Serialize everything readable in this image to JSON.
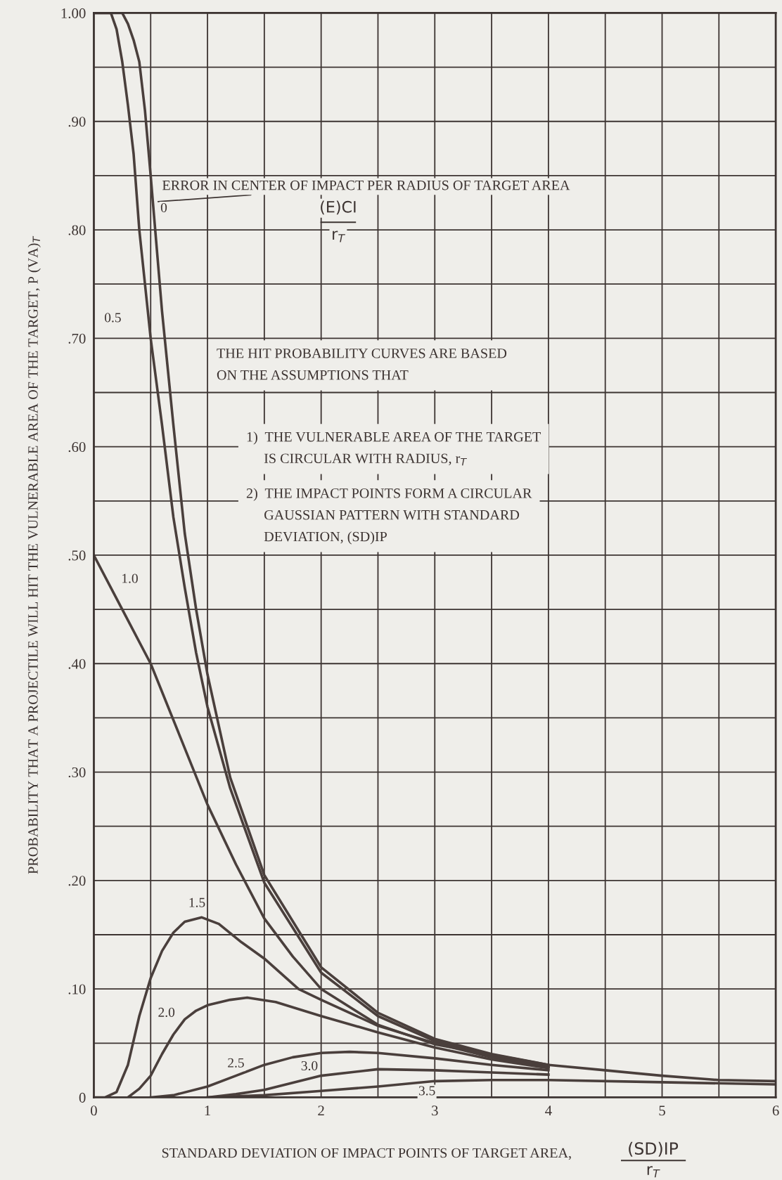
{
  "chart_data": {
    "type": "line",
    "xlabel": "STANDARD DEVIATION OF IMPACT POINTS OF TARGET AREA,",
    "ylabel": "PROBABILITY THAT A PROJECTILE WILL HIT THE VULNERABLE AREA OF THE TARGET, P (VA)$_{T}$",
    "annotations": [
      "ERROR IN CENTER OF IMPACT PER RADIUS OF TARGET AREA",
      "(E)CI",
      "r$_{T}$",
      "THE HIT PROBABILITY CURVES ARE BASED\nON THE ASSUMPTIONS THAT",
      "1)  THE VULNERABLE AREA OF THE TARGET\n     IS CIRCULAR WITH RADIUS, r$_{T}$",
      "2)  THE IMPACT POINTS FORM A CIRCULAR\n     GAUSSIAN PATTERN WITH STANDARD\n     DEVIATION, (SD)IP",
      "(SD)IP",
      "r$_{T}$"
    ],
    "xlim": [
      0,
      6
    ],
    "ylim": [
      0,
      1.0
    ],
    "xticks": [
      0,
      {
        "value": 0.5,
        "label": null
      },
      1,
      {
        "value": 1.5,
        "label": null
      },
      2,
      {
        "value": 2.5,
        "label": null
      },
      3,
      {
        "value": 3.5,
        "label": null
      },
      4,
      {
        "value": 4.5,
        "label": null
      },
      5,
      {
        "value": 5.5,
        "label": null
      },
      6
    ],
    "yticks": [
      0,
      {
        "value": 0.05,
        "label": null
      },
      {
        "value": 0.1,
        "label": ".10"
      },
      {
        "value": 0.15,
        "label": null
      },
      {
        "value": 0.2,
        "label": ".20"
      },
      {
        "value": 0.25,
        "label": null
      },
      {
        "value": 0.3,
        "label": ".30"
      },
      {
        "value": 0.35,
        "label": null
      },
      {
        "value": 0.4,
        "label": ".40"
      },
      {
        "value": 0.45,
        "label": null
      },
      {
        "value": 0.5,
        "label": ".50"
      },
      {
        "value": 0.55,
        "label": null
      },
      {
        "value": 0.6,
        "label": ".60"
      },
      {
        "value": 0.65,
        "label": null
      },
      {
        "value": 0.7,
        "label": ".70"
      },
      {
        "value": 0.75,
        "label": null
      },
      {
        "value": 0.8,
        "label": ".80"
      },
      {
        "value": 0.85,
        "label": null
      },
      {
        "value": 0.9,
        "label": ".90"
      },
      {
        "value": 0.95,
        "label": null
      },
      {
        "value": 1.0,
        "label": "1.00"
      }
    ],
    "grid": true,
    "legend": false,
    "marker": "none",
    "line_style": "solid",
    "series": [
      {
        "name": "0",
        "color": "#4a3f3c",
        "x": [
          0,
          0.25,
          0.3,
          0.35,
          0.4,
          0.45,
          0.5,
          0.6,
          0.7,
          0.8,
          0.9,
          1.0,
          1.2,
          1.5,
          2.0,
          2.5,
          3.0,
          3.5,
          4.0
        ],
        "values": [
          1.0,
          1.0,
          0.99,
          0.975,
          0.955,
          0.91,
          0.85,
          0.725,
          0.62,
          0.52,
          0.45,
          0.39,
          0.295,
          0.205,
          0.12,
          0.078,
          0.054,
          0.04,
          0.03
        ]
      },
      {
        "name": "0.5",
        "color": "#4a3f3c",
        "x": [
          0,
          0.15,
          0.2,
          0.25,
          0.3,
          0.35,
          0.4,
          0.5,
          0.6,
          0.7,
          0.8,
          0.9,
          1.0,
          1.2,
          1.5,
          2.0,
          2.5,
          3.0,
          3.5,
          4.0
        ],
        "values": [
          1.0,
          1.0,
          0.985,
          0.955,
          0.915,
          0.87,
          0.8,
          0.7,
          0.62,
          0.535,
          0.47,
          0.41,
          0.36,
          0.285,
          0.198,
          0.115,
          0.075,
          0.052,
          0.038,
          0.028
        ]
      },
      {
        "name": "1.0",
        "color": "#4a3f3c",
        "x": [
          0,
          0.25,
          0.5,
          0.75,
          1.0,
          1.25,
          1.5,
          1.75,
          2.0,
          2.5,
          3.0,
          4.0,
          4.5,
          5.0,
          5.5,
          6.0
        ],
        "values": [
          0.5,
          0.45,
          0.4,
          0.335,
          0.27,
          0.215,
          0.165,
          0.13,
          0.1,
          0.067,
          0.049,
          0.03,
          0.025,
          0.02,
          0.016,
          0.015
        ]
      },
      {
        "name": "1.5",
        "color": "#4a3f3c",
        "x": [
          0,
          0.1,
          0.2,
          0.3,
          0.4,
          0.5,
          0.6,
          0.7,
          0.8,
          0.95,
          1.1,
          1.3,
          1.5,
          1.8,
          2.0,
          2.5,
          3.0,
          3.5,
          4.0
        ],
        "values": [
          0,
          0,
          0.005,
          0.03,
          0.075,
          0.11,
          0.135,
          0.152,
          0.162,
          0.166,
          0.16,
          0.143,
          0.128,
          0.1,
          0.09,
          0.066,
          0.05,
          0.037,
          0.028
        ]
      },
      {
        "name": "2.0",
        "color": "#4a3f3c",
        "x": [
          0.3,
          0.4,
          0.5,
          0.6,
          0.7,
          0.8,
          0.9,
          1.0,
          1.2,
          1.35,
          1.6,
          2.0,
          2.5,
          3.0,
          3.5,
          4.0
        ],
        "values": [
          0,
          0.008,
          0.02,
          0.04,
          0.058,
          0.072,
          0.08,
          0.085,
          0.09,
          0.092,
          0.088,
          0.075,
          0.06,
          0.046,
          0.035,
          0.027
        ]
      },
      {
        "name": "2.5",
        "color": "#4a3f3c",
        "x": [
          0.5,
          0.7,
          1.0,
          1.25,
          1.5,
          1.75,
          2.0,
          2.25,
          2.5,
          3.0,
          3.5,
          4.0
        ],
        "values": [
          0,
          0.002,
          0.01,
          0.02,
          0.03,
          0.037,
          0.041,
          0.042,
          0.041,
          0.036,
          0.03,
          0.025
        ]
      },
      {
        "name": "3.0",
        "color": "#4a3f3c",
        "x": [
          1.0,
          1.25,
          1.5,
          2.0,
          2.5,
          3.0,
          3.5,
          4.0
        ],
        "values": [
          0,
          0.003,
          0.007,
          0.02,
          0.026,
          0.025,
          0.023,
          0.021
        ]
      },
      {
        "name": "3.5",
        "color": "#4a3f3c",
        "x": [
          1.0,
          1.5,
          2.0,
          2.5,
          3.0,
          3.5,
          4.0,
          5.0,
          6.0
        ],
        "values": [
          0,
          0.002,
          0.006,
          0.01,
          0.015,
          0.016,
          0.016,
          0.014,
          0.012
        ]
      }
    ]
  }
}
